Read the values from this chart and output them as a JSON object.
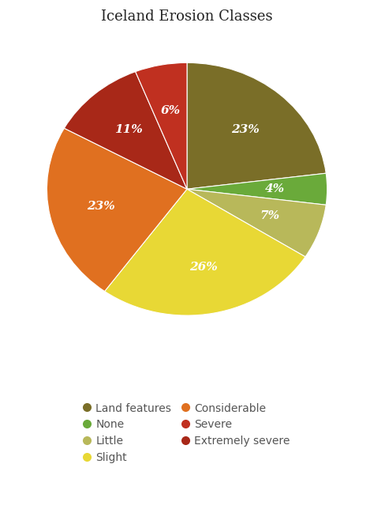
{
  "title": "Iceland Erosion Classes",
  "slices": [
    {
      "label": "Land features",
      "pct": 23,
      "color": "#7a6e28"
    },
    {
      "label": "None",
      "pct": 4,
      "color": "#6aaa3a"
    },
    {
      "label": "Little",
      "pct": 7,
      "color": "#b8b85a"
    },
    {
      "label": "Slight",
      "pct": 26,
      "color": "#e8d835"
    },
    {
      "label": "Considerable",
      "pct": 23,
      "color": "#e07020"
    },
    {
      "label": "Extremely severe",
      "pct": 11,
      "color": "#a82818"
    },
    {
      "label": "Severe",
      "pct": 6,
      "color": "#c03020"
    }
  ],
  "legend_col1": [
    "Land features",
    "Little",
    "Considerable",
    "Extremely severe"
  ],
  "legend_col2": [
    "None",
    "Slight",
    "Severe"
  ],
  "label_color": "#ffffff",
  "background_color": "#ffffff",
  "title_fontsize": 13,
  "label_fontsize": 11
}
